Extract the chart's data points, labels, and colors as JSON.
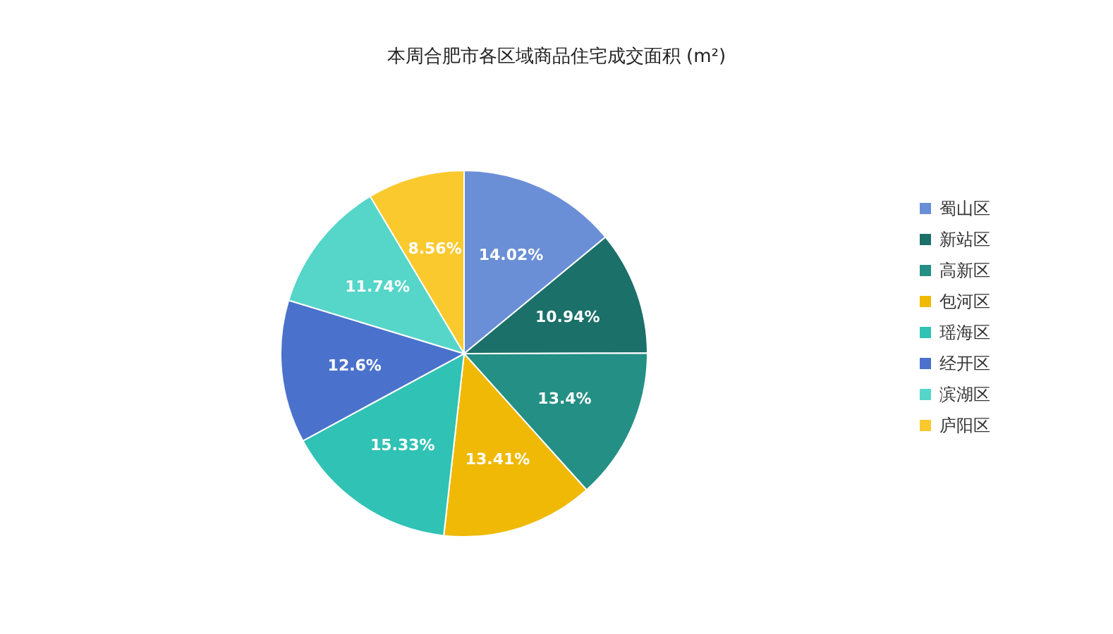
{
  "chart_data": {
    "type": "pie",
    "title": "本周合肥市各区域商品住宅成交面积 (m²)",
    "categories": [
      "蜀山区",
      "新站区",
      "高新区",
      "包河区",
      "瑶海区",
      "经开区",
      "滨湖区",
      "庐阳区"
    ],
    "values": [
      14.02,
      10.94,
      13.4,
      13.41,
      15.33,
      12.6,
      11.74,
      8.56
    ],
    "colors": [
      "#6b8fd6",
      "#1b7069",
      "#248f85",
      "#f0b906",
      "#30c2b4",
      "#4a72cc",
      "#55d6c9",
      "#fac92e"
    ],
    "value_labels": [
      "14.02%",
      "10.94%",
      "13.4%",
      "13.41%",
      "15.33%",
      "12.6%",
      "11.74%",
      "8.56%"
    ],
    "legend": "right"
  }
}
